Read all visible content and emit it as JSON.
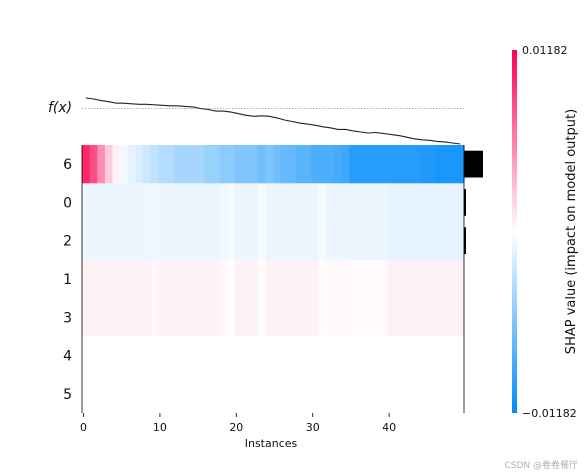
{
  "chart_data": {
    "type": "heatmap",
    "subtype": "shap-heatmap",
    "fx_label": "f(x)",
    "xlabel": "Instances",
    "x_ticks": [
      0,
      10,
      20,
      30,
      40
    ],
    "n_instances": 50,
    "features": [
      "6",
      "0",
      "2",
      "1",
      "3",
      "4",
      "5"
    ],
    "feature_importance": [
      1.0,
      0.07,
      0.07,
      0.0,
      0.0,
      0.0,
      0.0
    ],
    "fx_values": [
      0.0,
      -0.02,
      -0.05,
      -0.07,
      -0.1,
      -0.1,
      -0.11,
      -0.12,
      -0.12,
      -0.13,
      -0.14,
      -0.15,
      -0.15,
      -0.16,
      -0.17,
      -0.2,
      -0.22,
      -0.25,
      -0.25,
      -0.27,
      -0.3,
      -0.33,
      -0.35,
      -0.34,
      -0.35,
      -0.38,
      -0.42,
      -0.45,
      -0.48,
      -0.5,
      -0.52,
      -0.55,
      -0.57,
      -0.6,
      -0.6,
      -0.63,
      -0.65,
      -0.67,
      -0.66,
      -0.68,
      -0.7,
      -0.72,
      -0.75,
      -0.78,
      -0.8,
      -0.81,
      -0.83,
      -0.84,
      -0.86,
      -0.88
    ],
    "fx_baseline": -0.2,
    "rows": [
      [
        0.85,
        0.7,
        0.45,
        0.2,
        0.05,
        -0.05,
        -0.1,
        -0.15,
        -0.2,
        -0.25,
        -0.3,
        -0.3,
        -0.35,
        -0.35,
        -0.35,
        -0.35,
        -0.4,
        -0.4,
        -0.45,
        -0.45,
        -0.5,
        -0.5,
        -0.5,
        -0.55,
        -0.5,
        -0.55,
        -0.6,
        -0.6,
        -0.65,
        -0.65,
        -0.7,
        -0.7,
        -0.7,
        -0.72,
        -0.75,
        -0.85,
        -0.85,
        -0.85,
        -0.85,
        -0.85,
        -0.85,
        -0.85,
        -0.85,
        -0.85,
        -0.87,
        -0.87,
        -0.9,
        -0.9,
        -0.9,
        -0.9
      ],
      [
        -0.08,
        -0.08,
        -0.08,
        -0.08,
        -0.08,
        -0.08,
        -0.08,
        -0.08,
        -0.08,
        -0.06,
        -0.08,
        -0.08,
        -0.08,
        -0.08,
        -0.08,
        -0.08,
        -0.08,
        -0.08,
        -0.06,
        -0.04,
        -0.08,
        -0.08,
        -0.08,
        -0.04,
        -0.08,
        -0.08,
        -0.08,
        -0.08,
        -0.08,
        -0.08,
        -0.08,
        -0.04,
        -0.08,
        -0.08,
        -0.08,
        -0.08,
        -0.08,
        -0.08,
        -0.08,
        -0.08,
        -0.1,
        -0.1,
        -0.1,
        -0.1,
        -0.1,
        -0.1,
        -0.1,
        -0.1,
        -0.1,
        -0.1
      ],
      [
        -0.08,
        -0.08,
        -0.08,
        -0.08,
        -0.08,
        -0.08,
        -0.08,
        -0.08,
        -0.08,
        -0.06,
        -0.08,
        -0.08,
        -0.08,
        -0.08,
        -0.08,
        -0.08,
        -0.08,
        -0.08,
        -0.06,
        -0.04,
        -0.08,
        -0.08,
        -0.08,
        -0.04,
        -0.08,
        -0.08,
        -0.08,
        -0.08,
        -0.08,
        -0.08,
        -0.08,
        -0.04,
        -0.08,
        -0.08,
        -0.08,
        -0.08,
        -0.08,
        -0.08,
        -0.08,
        -0.08,
        -0.1,
        -0.1,
        -0.1,
        -0.1,
        -0.1,
        -0.1,
        -0.1,
        -0.1,
        -0.1,
        -0.1
      ],
      [
        0.05,
        0.05,
        0.05,
        0.05,
        0.05,
        0.05,
        0.05,
        0.05,
        0.05,
        0.03,
        0.05,
        0.05,
        0.05,
        0.05,
        0.05,
        0.05,
        0.05,
        0.05,
        0.03,
        0.01,
        0.05,
        0.05,
        0.05,
        0.01,
        0.05,
        0.05,
        0.05,
        0.05,
        0.05,
        0.05,
        0.05,
        0.01,
        0.03,
        0.03,
        0.03,
        0.02,
        0.02,
        0.02,
        0.02,
        0.02,
        0.05,
        0.05,
        0.05,
        0.05,
        0.05,
        0.05,
        0.05,
        0.05,
        0.05,
        0.05
      ],
      [
        0.05,
        0.05,
        0.05,
        0.05,
        0.05,
        0.05,
        0.05,
        0.05,
        0.05,
        0.03,
        0.05,
        0.05,
        0.05,
        0.05,
        0.05,
        0.05,
        0.05,
        0.05,
        0.03,
        0.01,
        0.05,
        0.05,
        0.05,
        0.01,
        0.05,
        0.05,
        0.05,
        0.05,
        0.05,
        0.05,
        0.05,
        0.01,
        0.03,
        0.03,
        0.03,
        0.02,
        0.02,
        0.02,
        0.02,
        0.02,
        0.05,
        0.05,
        0.05,
        0.05,
        0.05,
        0.05,
        0.05,
        0.05,
        0.05,
        0.05
      ],
      [
        0,
        0,
        0,
        0,
        0,
        0,
        0,
        0,
        0,
        0,
        0,
        0,
        0,
        0,
        0,
        0,
        0,
        0,
        0,
        0,
        0,
        0,
        0,
        0,
        0,
        0,
        0,
        0,
        0,
        0,
        0,
        0,
        0,
        0,
        0,
        0,
        0,
        0,
        0,
        0,
        0,
        0,
        0,
        0,
        0,
        0,
        0,
        0,
        0,
        0
      ],
      [
        0,
        0,
        0,
        0,
        0,
        0,
        0,
        0,
        0,
        0,
        0,
        0,
        0,
        0,
        0,
        0,
        0,
        0,
        0,
        0,
        0,
        0,
        0,
        0,
        0,
        0,
        0,
        0,
        0,
        0,
        0,
        0,
        0,
        0,
        0,
        0,
        0,
        0,
        0,
        0,
        0,
        0,
        0,
        0,
        0,
        0,
        0,
        0,
        0,
        0
      ]
    ],
    "colorbar": {
      "label": "SHAP value (impact on model output)",
      "max_label": "0.01182",
      "min_label": "−0.01182"
    },
    "colors": {
      "positive": "#ff0051",
      "negative": "#008bfb",
      "neutral": "#ffffff"
    }
  },
  "watermark": "CSDN @卷卷餐厅"
}
